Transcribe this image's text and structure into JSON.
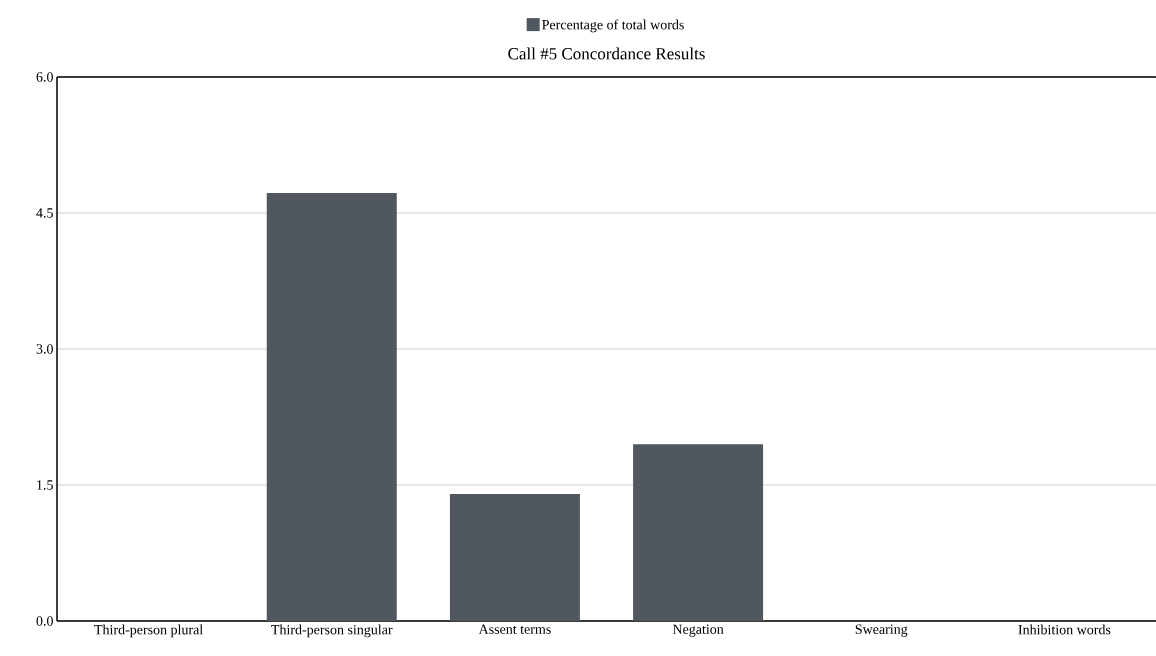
{
  "chart_data": {
    "type": "bar",
    "title": "Call #5 Concordance Results",
    "categories": [
      "Third-person plural",
      "Third-person singular",
      "Assent terms",
      "Negation",
      "Swearing",
      "Inhibition words"
    ],
    "series": [
      {
        "name": "Percentage of total words",
        "color": "#51575f",
        "values": [
          0,
          4.72,
          1.4,
          1.95,
          0,
          0
        ]
      }
    ],
    "ylim": [
      0,
      6
    ],
    "yticks": [
      {
        "value": 0,
        "label": "0.0"
      },
      {
        "value": 1.5,
        "label": "1.5"
      },
      {
        "value": 3,
        "label": "3.0"
      },
      {
        "value": 4.5,
        "label": "4.5"
      },
      {
        "value": 6,
        "label": "6.0"
      }
    ],
    "grid": "y",
    "legend": "top"
  }
}
